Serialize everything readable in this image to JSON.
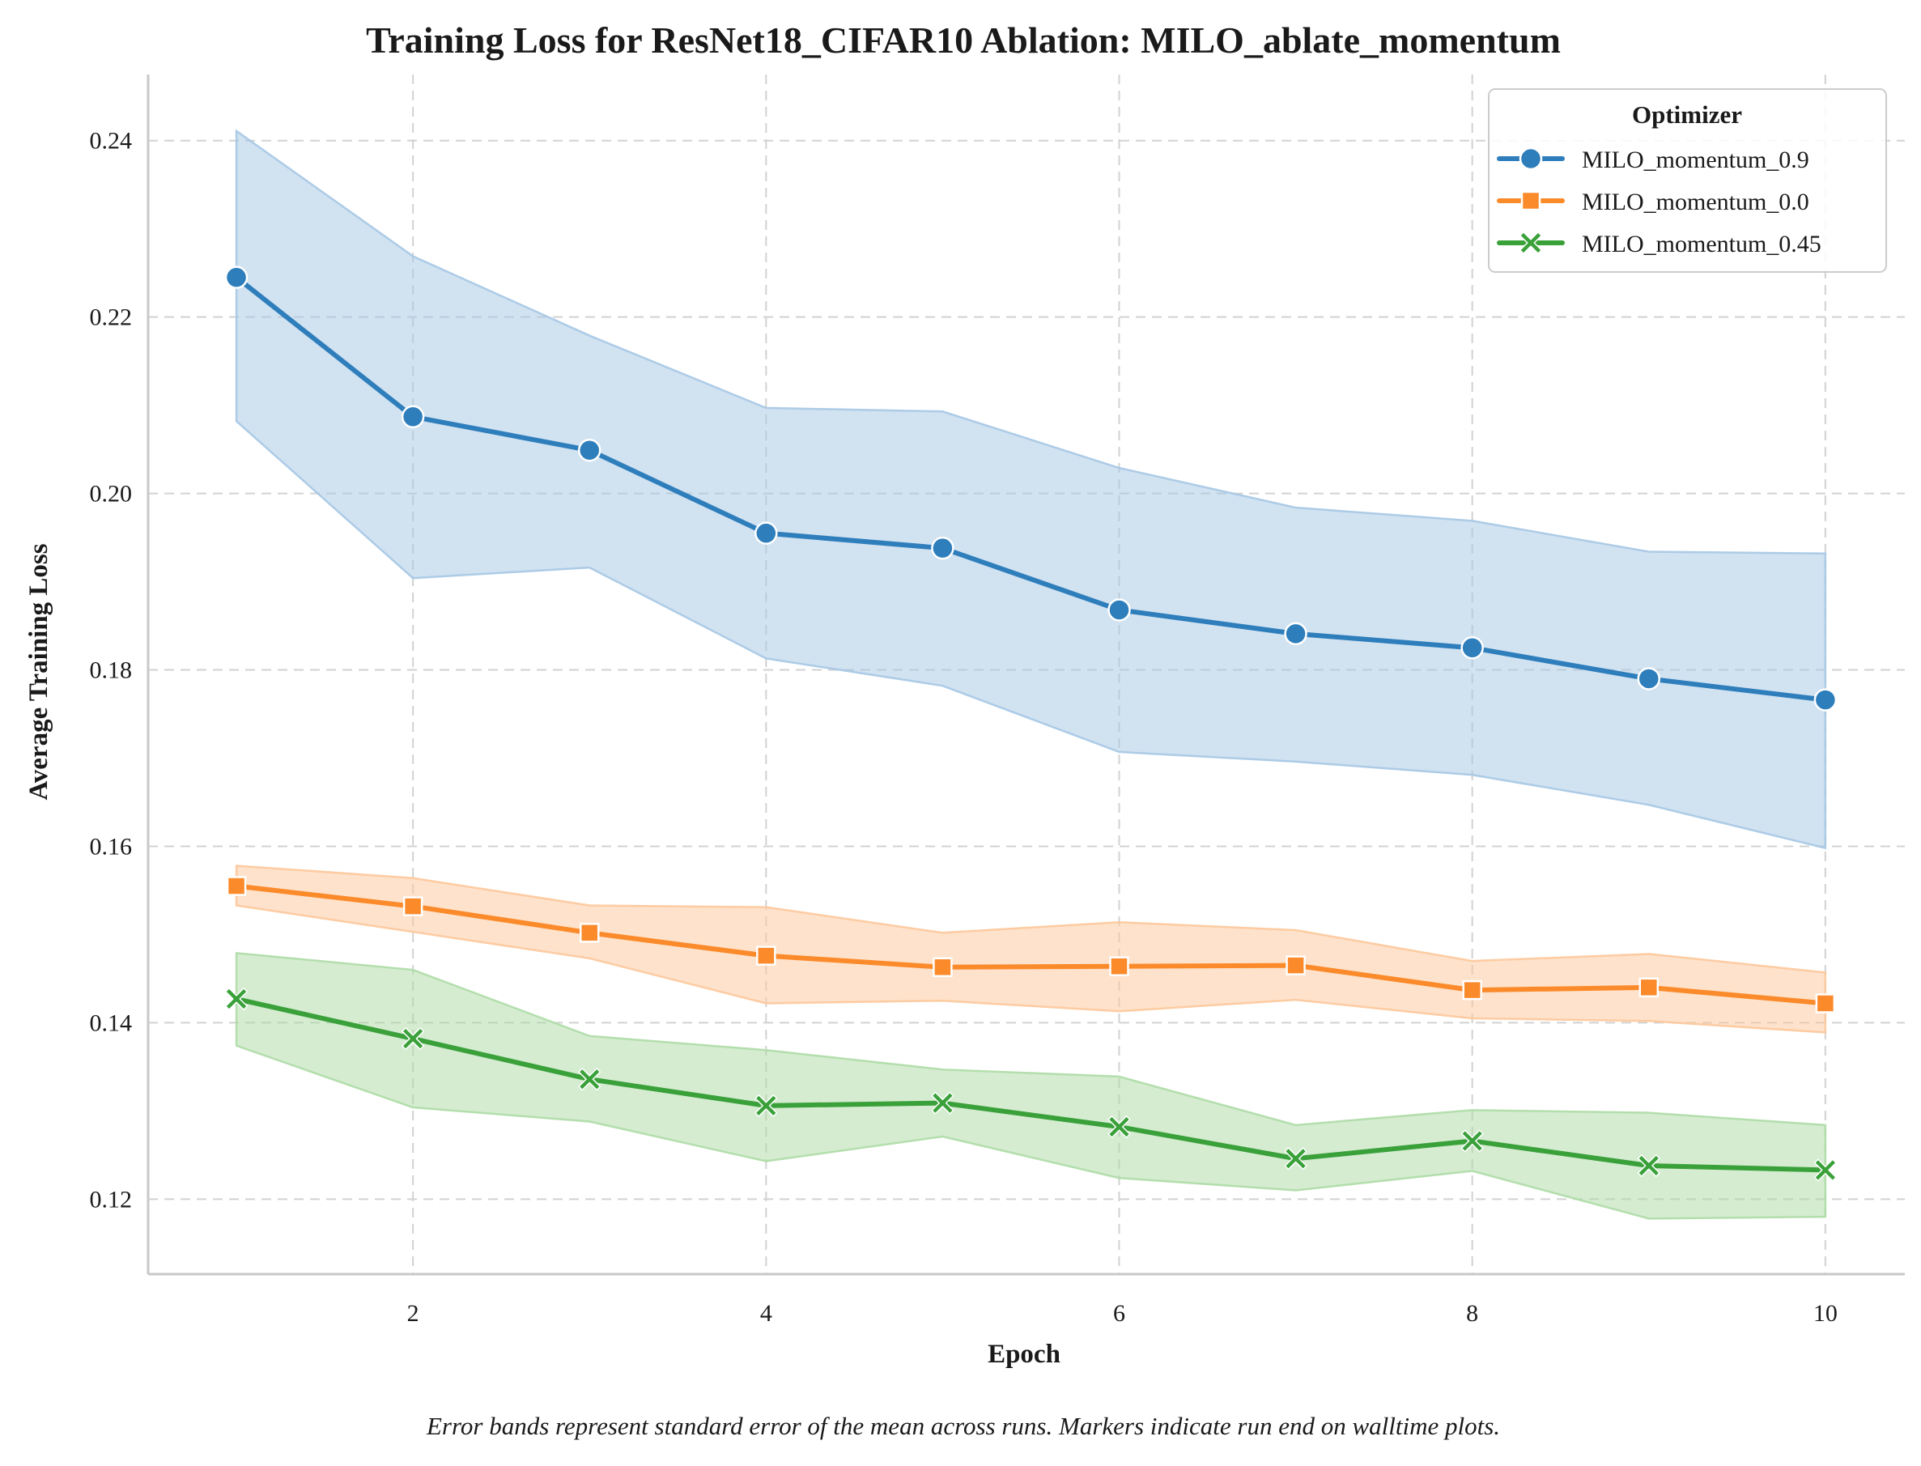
{
  "chart_data": {
    "type": "line",
    "title": "Training Loss for ResNet18_CIFAR10 Ablation: MILO_ablate_momentum",
    "xlabel": "Epoch",
    "ylabel": "Average Training Loss",
    "caption": "Error bands represent standard error of the mean across runs. Markers indicate run end on walltime plots.",
    "xlim": [
      0.5,
      10.45
    ],
    "ylim": [
      0.1115,
      0.2475
    ],
    "xticks": [
      2,
      4,
      6,
      8,
      10
    ],
    "yticks": [
      0.12,
      0.14,
      0.16,
      0.18,
      0.2,
      0.22,
      0.24
    ],
    "ytick_labels": [
      "0.12",
      "0.14",
      "0.16",
      "0.18",
      "0.20",
      "0.22",
      "0.24"
    ],
    "grid": true,
    "legend": {
      "title": "Optimizer",
      "placement": "top-right"
    },
    "x": [
      1,
      2,
      3,
      4,
      5,
      6,
      7,
      8,
      9,
      10
    ],
    "series": [
      {
        "name": "MILO_momentum_0.9",
        "color": "#2e7ebc",
        "band_color": "#a6c8e4",
        "marker": "circle",
        "values": [
          0.2245,
          0.2087,
          0.2049,
          0.1955,
          0.1938,
          0.1868,
          0.1841,
          0.1825,
          0.179,
          0.1766
        ],
        "lower": [
          0.2082,
          0.1904,
          0.1916,
          0.1813,
          0.1782,
          0.1707,
          0.1696,
          0.1681,
          0.1647,
          0.1598
        ],
        "upper": [
          0.2411,
          0.2269,
          0.2179,
          0.2097,
          0.2093,
          0.2029,
          0.1984,
          0.1969,
          0.1934,
          0.1932
        ]
      },
      {
        "name": "MILO_momentum_0.0",
        "color": "#fb8a2b",
        "band_color": "#fdc89b",
        "marker": "square",
        "values": [
          0.1555,
          0.1532,
          0.1502,
          0.1476,
          0.1463,
          0.1464,
          0.1465,
          0.1437,
          0.144,
          0.1422
        ],
        "lower": [
          0.1533,
          0.1503,
          0.1473,
          0.1422,
          0.1425,
          0.1413,
          0.1426,
          0.1405,
          0.1402,
          0.1389
        ],
        "upper": [
          0.1578,
          0.1564,
          0.1533,
          0.1531,
          0.1502,
          0.1514,
          0.1505,
          0.147,
          0.1478,
          0.1457
        ]
      },
      {
        "name": "MILO_momentum_0.45",
        "color": "#3aa13a",
        "band_color": "#aedba6",
        "marker": "x",
        "values": [
          0.1427,
          0.1382,
          0.1336,
          0.1306,
          0.1309,
          0.1282,
          0.1246,
          0.1266,
          0.1238,
          0.1233
        ],
        "lower": [
          0.1374,
          0.1304,
          0.1288,
          0.1243,
          0.1271,
          0.1224,
          0.121,
          0.1232,
          0.1178,
          0.118
        ],
        "upper": [
          0.1479,
          0.146,
          0.1385,
          0.1369,
          0.1347,
          0.1339,
          0.1284,
          0.1301,
          0.1298,
          0.1284
        ]
      }
    ]
  }
}
